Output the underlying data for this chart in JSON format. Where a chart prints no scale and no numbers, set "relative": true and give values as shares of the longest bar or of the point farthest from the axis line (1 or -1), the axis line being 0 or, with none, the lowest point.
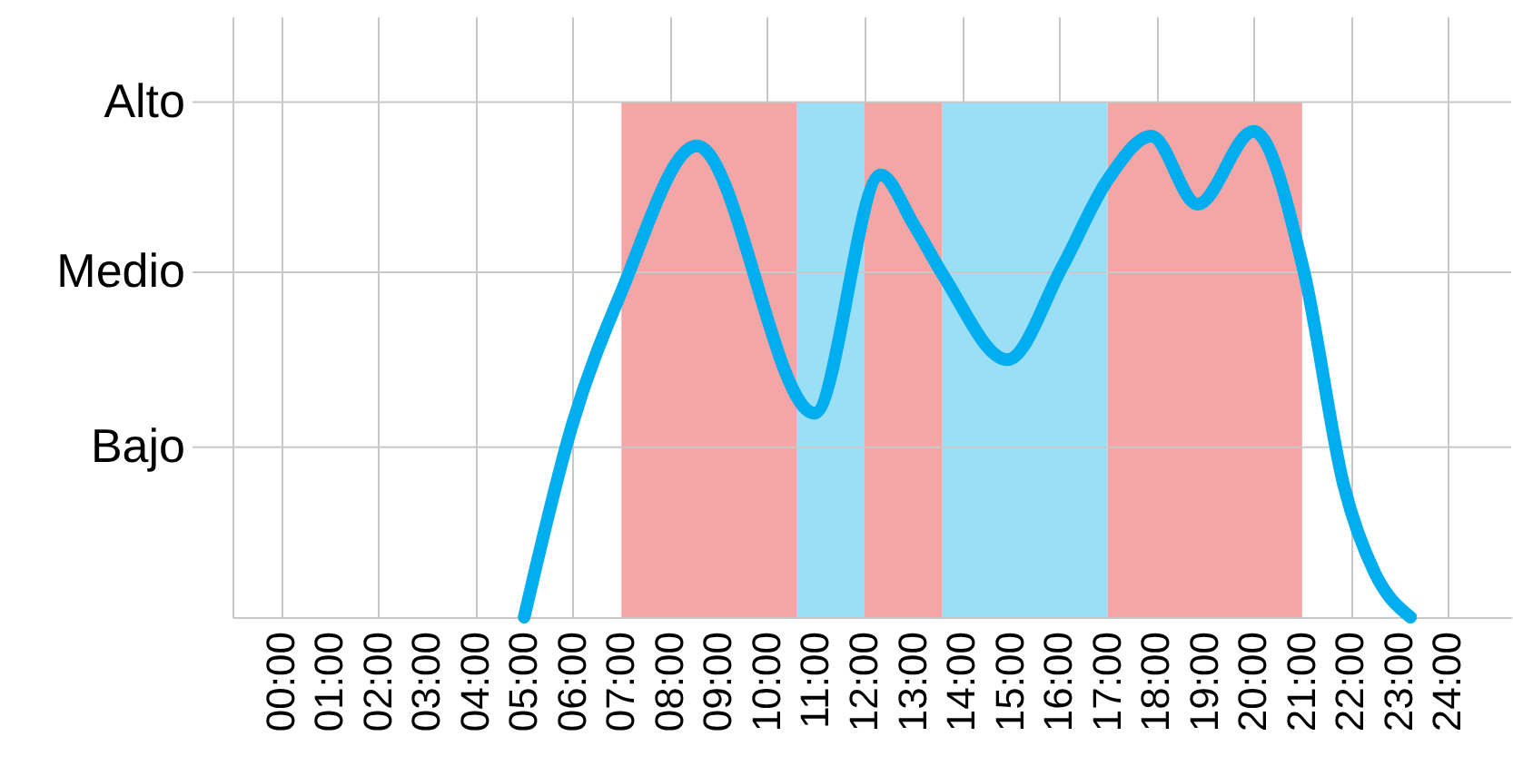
{
  "chart_data": {
    "type": "line",
    "relative": true,
    "x": [
      5,
      6,
      7,
      8.55,
      10.97,
      12.33,
      13,
      13.64,
      14.94,
      16.06,
      17,
      17.9,
      18.85,
      20,
      21.04,
      21.86,
      22.5,
      23.23
    ],
    "series": [
      {
        "color": "#00aeef",
        "values": [
          0,
          0.4,
          0.67,
          0.97,
          0.42,
          0.91,
          0.81,
          0.7,
          0.53,
          0.72,
          0.9,
          0.99,
          0.85,
          1,
          0.71,
          0.27,
          0.09,
          0
        ]
      }
    ],
    "xlim": [
      -1,
      25.3
    ],
    "xticks": [
      {
        "value": 0,
        "label": "00:00"
      },
      {
        "value": 1,
        "label": "01:00"
      },
      {
        "value": 2,
        "label": "02:00"
      },
      {
        "value": 3,
        "label": "03:00"
      },
      {
        "value": 4,
        "label": "04:00"
      },
      {
        "value": 5,
        "label": "05:00"
      },
      {
        "value": 6,
        "label": "06:00"
      },
      {
        "value": 7,
        "label": "07:00"
      },
      {
        "value": 8,
        "label": "08:00"
      },
      {
        "value": 9,
        "label": "09:00"
      },
      {
        "value": 10,
        "label": "10:00"
      },
      {
        "value": 11,
        "label": "11:00"
      },
      {
        "value": 12,
        "label": "12:00"
      },
      {
        "value": 13,
        "label": "13:00"
      },
      {
        "value": 14,
        "label": "14:00"
      },
      {
        "value": 15,
        "label": "15:00"
      },
      {
        "value": 16,
        "label": "16:00"
      },
      {
        "value": 17,
        "label": "17:00"
      },
      {
        "value": 18,
        "label": "18:00"
      },
      {
        "value": 19,
        "label": "19:00"
      },
      {
        "value": 20,
        "label": "20:00"
      },
      {
        "value": 21,
        "label": "21:00"
      },
      {
        "value": 22,
        "label": "22:00"
      },
      {
        "value": 23,
        "label": "23:00"
      },
      {
        "value": 24,
        "label": "24:00"
      }
    ],
    "grid": "x",
    "ref_lines": [
      {
        "axis": "y",
        "value": 1.06,
        "label": "Alto",
        "color": "#c8c8c8"
      },
      {
        "axis": "y",
        "value": 0.71,
        "label": "Medio",
        "color": "#c8c8c8"
      },
      {
        "axis": "y",
        "value": 0.35,
        "label": "Bajo",
        "color": "#c8c8c8"
      }
    ],
    "bands": [
      {
        "axis": "x",
        "from": 7,
        "to": 10.6,
        "color": "#f4a6a6"
      },
      {
        "axis": "x",
        "from": 10.6,
        "to": 12,
        "color": "#9bdff7"
      },
      {
        "axis": "x",
        "from": 12,
        "to": 13.6,
        "color": "#f4a6a6"
      },
      {
        "axis": "x",
        "from": 13.6,
        "to": 17,
        "color": "#9bdff7"
      },
      {
        "axis": "x",
        "from": 17,
        "to": 21,
        "color": "#f4a6a6"
      }
    ]
  }
}
